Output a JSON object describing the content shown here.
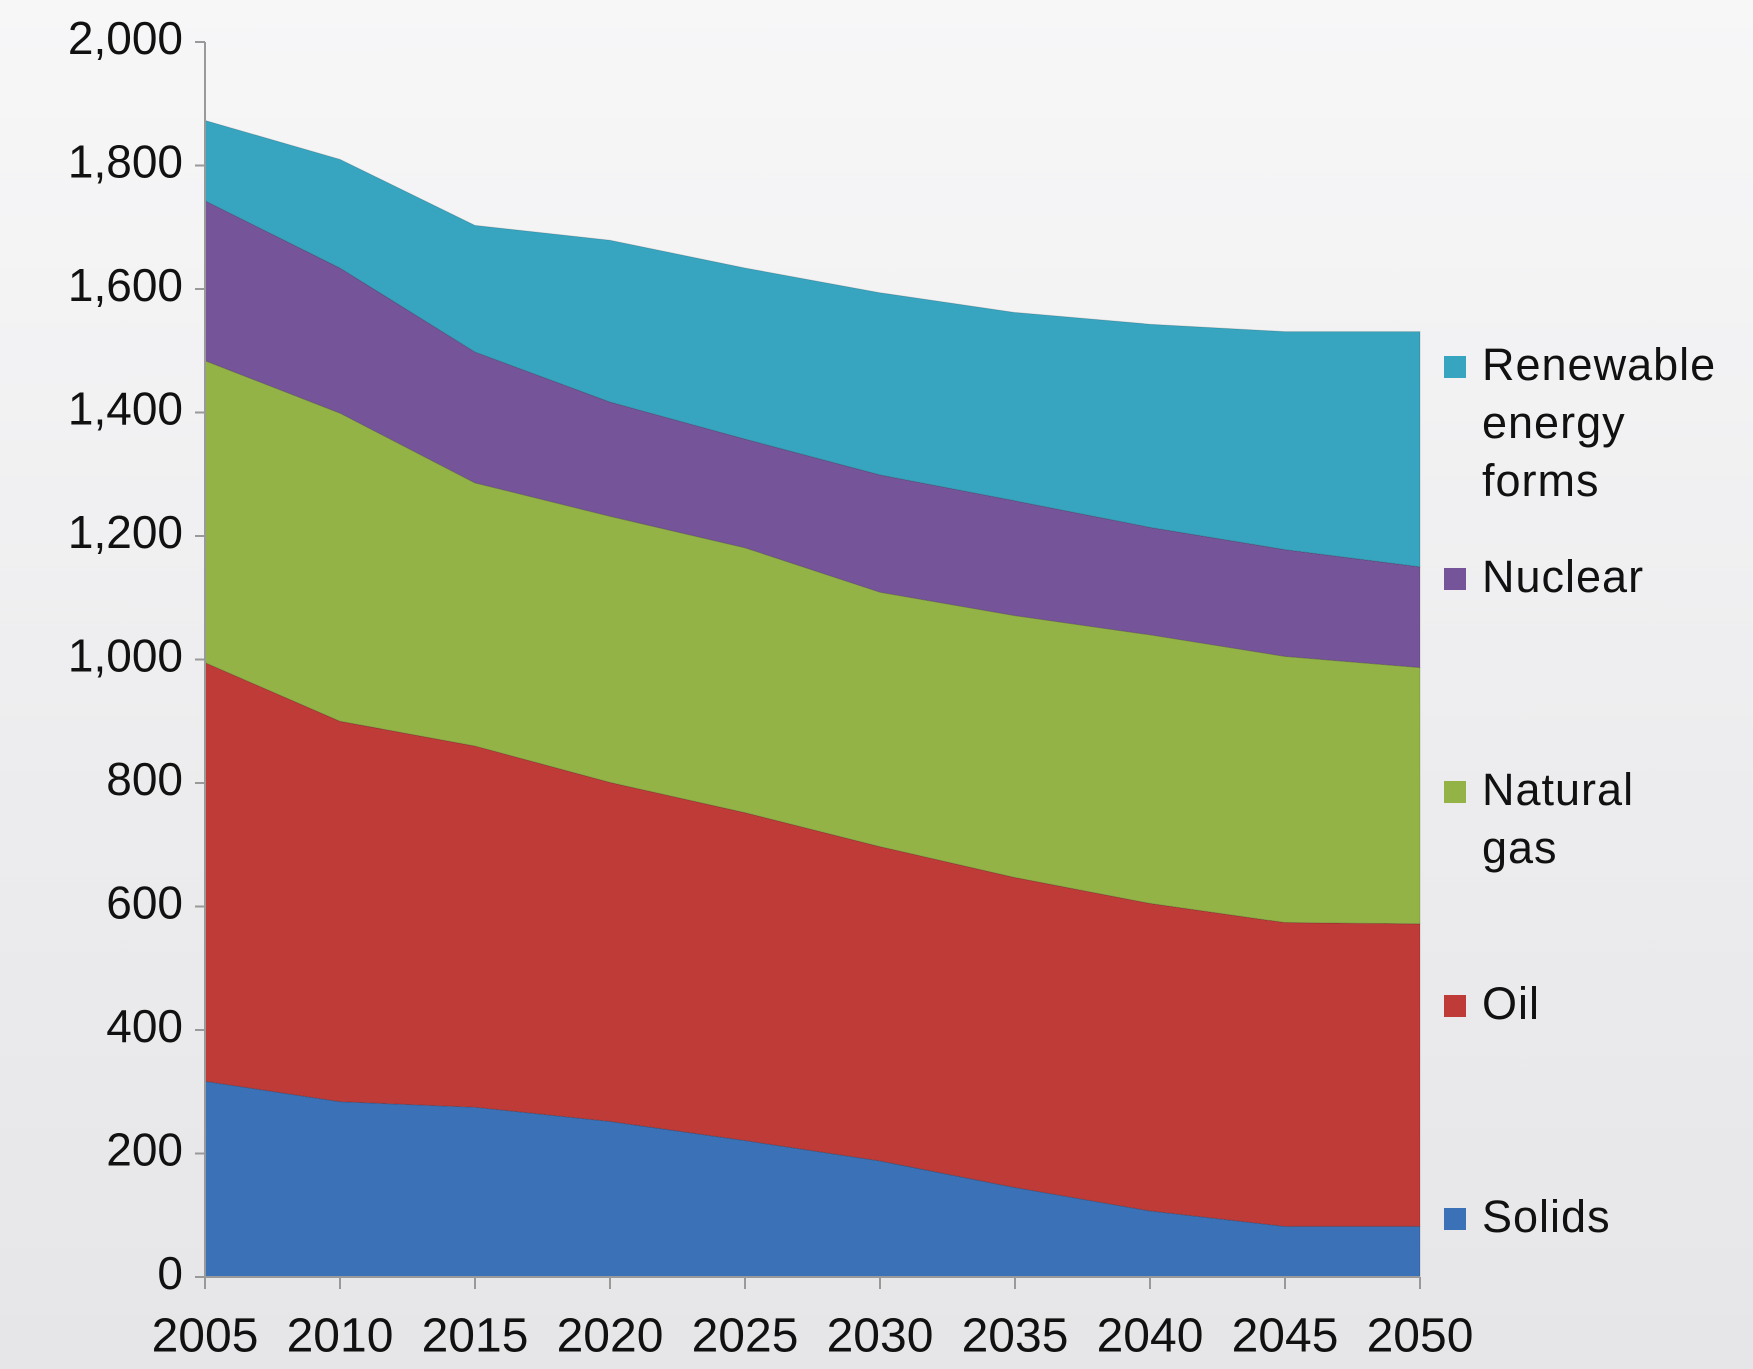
{
  "chart_data": {
    "type": "stacked_area",
    "x": [
      2005,
      2010,
      2015,
      2020,
      2025,
      2030,
      2035,
      2040,
      2045,
      2050
    ],
    "xlim": [
      2005,
      2050
    ],
    "xticks": [
      2005,
      2010,
      2015,
      2020,
      2025,
      2030,
      2035,
      2040,
      2045,
      2050
    ],
    "ylim": [
      0,
      2000
    ],
    "yticks": [
      0,
      200,
      400,
      600,
      800,
      {
        "value": 1000,
        "label": "1,000"
      },
      {
        "value": 1200,
        "label": "1,200"
      },
      {
        "value": 1400,
        "label": "1,400"
      },
      {
        "value": 1600,
        "label": "1,600"
      },
      {
        "value": 1800,
        "label": "1,800"
      },
      {
        "value": 2000,
        "label": "2,000"
      }
    ],
    "series": [
      {
        "name": "Solids",
        "color": "#3b71b6",
        "values": [
          317,
          284,
          275,
          252,
          221,
          188,
          145,
          107,
          82,
          82
        ]
      },
      {
        "name": "Oil",
        "color": "#be3b38",
        "values": [
          678,
          616,
          585,
          549,
          531,
          509,
          502,
          498,
          492,
          490
        ]
      },
      {
        "name": "Natural gas",
        "color": "#93b347",
        "values": [
          489,
          499,
          426,
          431,
          429,
          412,
          424,
          435,
          431,
          415
        ]
      },
      {
        "name": "Nuclear",
        "color": "#76549a",
        "values": [
          259,
          235,
          212,
          185,
          176,
          190,
          186,
          174,
          173,
          163
        ]
      },
      {
        "name": "Renewable energy forms",
        "color": "#37a5c0",
        "values": [
          130,
          176,
          205,
          262,
          277,
          295,
          305,
          329,
          353,
          381
        ]
      }
    ]
  }
}
